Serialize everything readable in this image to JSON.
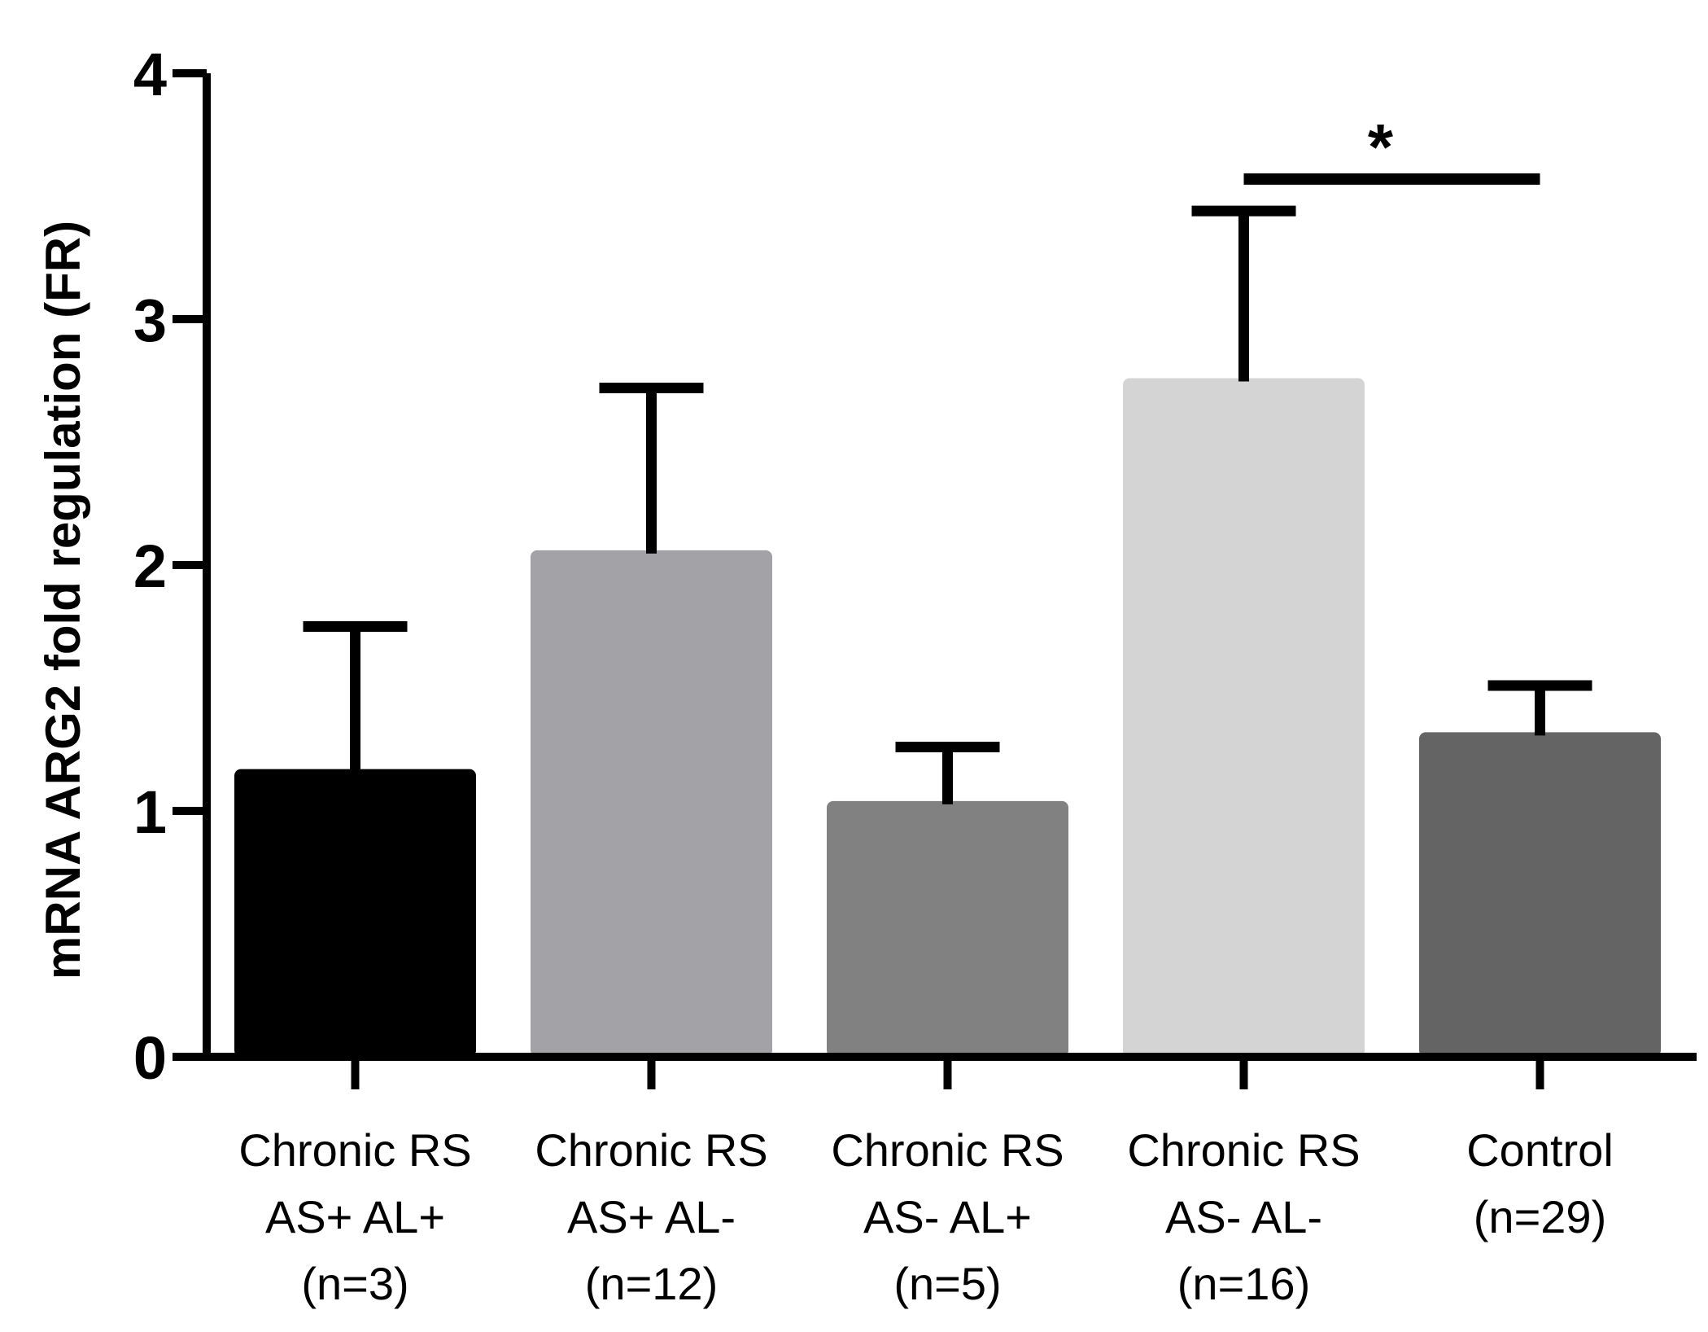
{
  "chart_data": {
    "type": "bar",
    "title": "",
    "xlabel": "",
    "ylabel": "mRNA ARG2 fold regulation (FR)",
    "ylim": [
      0,
      4
    ],
    "yticks": [
      0,
      1,
      2,
      3,
      4
    ],
    "ytick_labels": [
      "0",
      "1",
      "2",
      "3",
      "4"
    ],
    "grid": false,
    "categories": [
      {
        "lines": [
          "Chronic RS",
          "AS+ AL+",
          "(n=3)"
        ],
        "value": 1.17,
        "error": 0.58,
        "color": "#000000"
      },
      {
        "lines": [
          "Chronic RS",
          "AS+ AL-",
          "(n=12)"
        ],
        "value": 2.06,
        "error": 0.66,
        "color": "#a3a2a7"
      },
      {
        "lines": [
          "Chronic RS",
          "AS- AL+",
          "(n=5)"
        ],
        "value": 1.04,
        "error": 0.22,
        "color": "#818181"
      },
      {
        "lines": [
          "Chronic RS",
          "AS- AL-",
          "(n=16)"
        ],
        "value": 2.76,
        "error": 0.68,
        "color": "#d4d4d4"
      },
      {
        "lines": [
          "Control",
          "(n=29)"
        ],
        "value": 1.32,
        "error": 0.19,
        "color": "#646464"
      }
    ],
    "significance": [
      {
        "from": 3,
        "to": 4,
        "label": "*",
        "y": 3.57
      }
    ]
  }
}
